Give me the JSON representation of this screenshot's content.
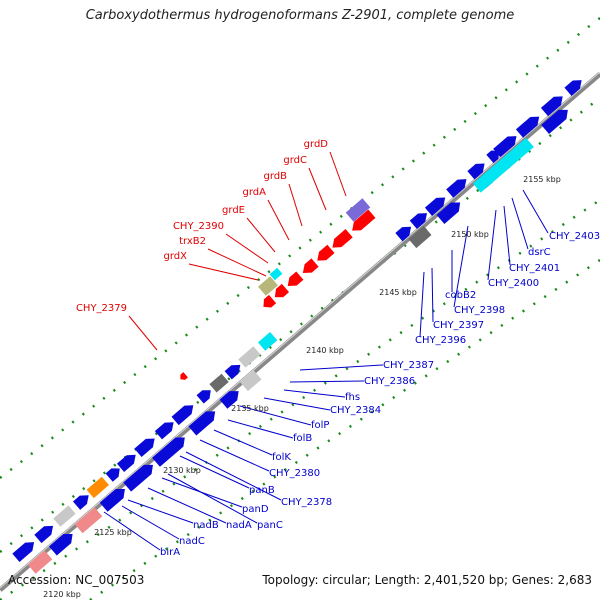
{
  "title": "Carboxydothermus hydrogenoformans Z-2901, complete genome",
  "footer": {
    "accession": "Accession: NC_007503",
    "summary": "Topology: circular; Length: 2,401,520 bp; Genes: 2,683"
  },
  "colors": {
    "forward_gene": "#0a0ad8",
    "reverse_gene": "#ff0000",
    "highlight_cyan": "#00e5f2",
    "highlight_salmon": "#f08a8a",
    "highlight_orange": "#ff8c00",
    "highlight_gray": "#c8c8c8",
    "highlight_dark_gray": "#6a6a6a",
    "highlight_olive": "#b7b77a",
    "highlight_lavender": "#7a6ad8",
    "tick_dots": "#1a8a1a",
    "backbone": "#888888",
    "red_label": "#e00000",
    "blue_label": "#0000cc"
  },
  "scale": {
    "unit": "kbp",
    "ticks": [
      "2120 kbp",
      "2125 kbp",
      "2130 kbp",
      "2135 kbp",
      "2140 kbp",
      "2145 kbp",
      "2150 kbp",
      "2155 kbp"
    ]
  },
  "labels": {
    "reverse_strand": [
      "grdD",
      "grdC",
      "grdB",
      "grdA",
      "grdE",
      "CHY_2390",
      "trxB2",
      "grdX",
      "CHY_2379"
    ],
    "forward_strand": [
      "CHY_2403",
      "dsrC",
      "CHY_2401",
      "CHY_2400",
      "CHY_2398",
      "cobB2",
      "CHY_2397",
      "CHY_2396",
      "CHY_2387",
      "CHY_2386",
      "fhs",
      "CHY_2384",
      "folP",
      "folB",
      "folK",
      "CHY_2380",
      "CHY_2378",
      "panB",
      "panC",
      "panD",
      "nadA",
      "nadB",
      "nadC",
      "birA"
    ]
  }
}
